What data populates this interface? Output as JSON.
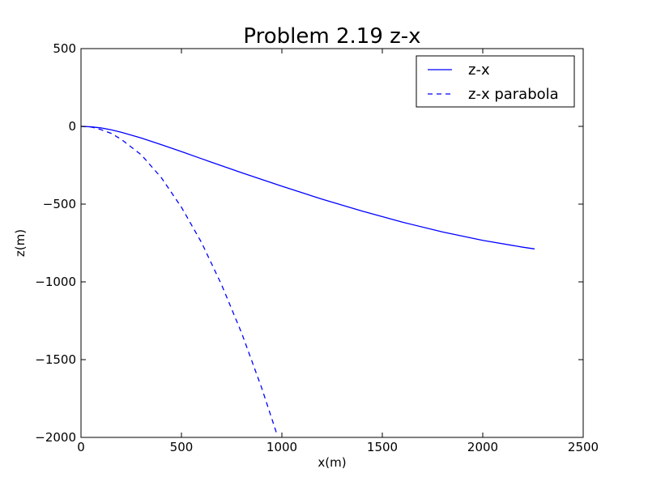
{
  "chart_data": {
    "type": "line",
    "title": "Problem 2.19 z-x",
    "xlabel": "x(m)",
    "ylabel": "z(m)",
    "xlim": [
      0,
      2500
    ],
    "ylim": [
      -2000,
      500
    ],
    "xticks": [
      0,
      500,
      1000,
      1500,
      2000,
      2500
    ],
    "yticks": [
      500,
      0,
      -500,
      -1000,
      -1500,
      -2000
    ],
    "xtick_labels": [
      "0",
      "500",
      "1000",
      "1500",
      "2000",
      "2500"
    ],
    "ytick_labels": [
      "500",
      "0",
      "−500",
      "−1000",
      "−1500",
      "−2000"
    ],
    "grid": false,
    "legend_position": "top-right",
    "series": [
      {
        "name": "z-x",
        "style": "solid",
        "color": "#0000ff",
        "x": [
          0,
          50,
          100,
          150,
          200,
          300,
          400,
          500,
          600,
          700,
          800,
          1000,
          1200,
          1400,
          1600,
          1800,
          2000,
          2200,
          2258
        ],
        "y": [
          0,
          -3,
          -10,
          -22,
          -38,
          -75,
          -118,
          -162,
          -208,
          -253,
          -298,
          -385,
          -468,
          -545,
          -616,
          -679,
          -733,
          -777,
          -788
        ]
      },
      {
        "name": "z-x parabola",
        "style": "dashed",
        "color": "#0000ff",
        "x": [
          0,
          50,
          100,
          150,
          200,
          300,
          400,
          500,
          600,
          700,
          800,
          900,
          978
        ],
        "y": [
          0,
          -4,
          -21,
          -45,
          -83,
          -183,
          -330,
          -520,
          -747,
          -1019,
          -1330,
          -1684,
          -1990
        ]
      }
    ]
  }
}
